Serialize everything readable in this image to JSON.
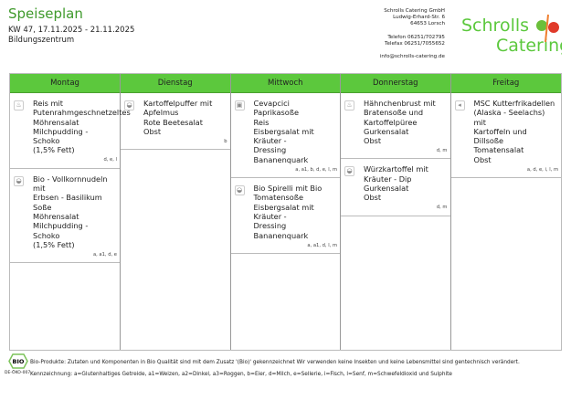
{
  "header": {
    "title": "Speiseplan",
    "week": "KW 47, 17.11.2025 - 21.11.2025",
    "location": "Bildungszentrum"
  },
  "company": {
    "lines": [
      "Schrolls Catering GmbH",
      "Ludwig-Erhard-Str. 6",
      "64653 Lorsch",
      "",
      "Telefon 06251/702795",
      "Telefax 06251/7055652",
      "",
      "info@schrolls-catering.de"
    ],
    "logo_text": [
      "Schrolls",
      "Catering"
    ]
  },
  "accent": "#5cc83d",
  "days": [
    {
      "name": "Montag",
      "meals": [
        {
          "icon": "chicken-icon",
          "lines": [
            "Reis mit",
            "Putenrahmgeschnetzeltes",
            "Möhrensalat",
            "Milchpudding - Schoko",
            "(1,5% Fett)"
          ],
          "allergens": "d, e, l"
        },
        {
          "icon": "vegetarian-icon",
          "lines": [
            "Bio  -  Vollkornnudeln mit",
            "Erbsen - Basilikum Soße",
            "Möhrensalat",
            "Milchpudding - Schoko",
            "(1,5% Fett)"
          ],
          "allergens": "a, a1, d, e"
        }
      ]
    },
    {
      "name": "Dienstag",
      "meals": [
        {
          "icon": "vegetarian-icon",
          "lines": [
            "Kartoffelpuffer mit",
            "Apfelmus",
            "Rote Beetesalat",
            "Obst"
          ],
          "allergens": "b"
        }
      ]
    },
    {
      "name": "Mittwoch",
      "meals": [
        {
          "icon": "beef-icon",
          "lines": [
            "Cevapcici",
            "Paprikasoße",
            "Reis",
            "Eisbergsalat mit Kräuter  -",
            "Dressing",
            "Bananenquark"
          ],
          "allergens": "a, a1, b, d, e, l, m"
        },
        {
          "icon": "vegetarian-icon",
          "lines": [
            "Bio Spirelli mit Bio",
            "Tomatensoße",
            "Eisbergsalat mit Kräuter  -",
            "Dressing",
            "Bananenquark"
          ],
          "allergens": "a, a1, d, l, m"
        }
      ]
    },
    {
      "name": "Donnerstag",
      "meals": [
        {
          "icon": "chicken-icon",
          "lines": [
            "Hähnchenbrust mit",
            "Bratensoße und",
            "Kartoffelpüree",
            "Gurkensalat",
            "Obst"
          ],
          "allergens": "d, m"
        },
        {
          "icon": "vegetarian-icon",
          "lines": [
            "Würzkartoffel mit",
            "Kräuter  -  Dip",
            "Gurkensalat",
            "Obst"
          ],
          "allergens": "d, m"
        }
      ]
    },
    {
      "name": "Freitag",
      "meals": [
        {
          "icon": "fish-icon",
          "lines": [
            "MSC Kutterfrikadellen",
            "(Alaska - Seelachs) mit",
            "Kartoffeln und Dillsoße",
            "Tomatensalat",
            "Obst"
          ],
          "allergens": "a, d, e, i, l, m"
        }
      ]
    }
  ],
  "footer": {
    "bio_code": "DE-ÖKO-007",
    "bio_logo": "BIO",
    "bio_note": "Bio-Produkte: Zutaten und Komponenten in Bio Qualität sind mit dem Zusatz '(Bio)' gekennzeichnet Wir verwenden keine Insekten und keine Lebensmittel sind gentechnisch verändert.",
    "legend": "Kennzeichnung: a=Glutenhaltiges Getreide, a1=Weizen, a2=Dinkel, a3=Roggen, b=Eier, d=Milch, e=Sellerie, i=Fisch, l=Senf, m=Schwefeldioxid und Sulphite"
  }
}
